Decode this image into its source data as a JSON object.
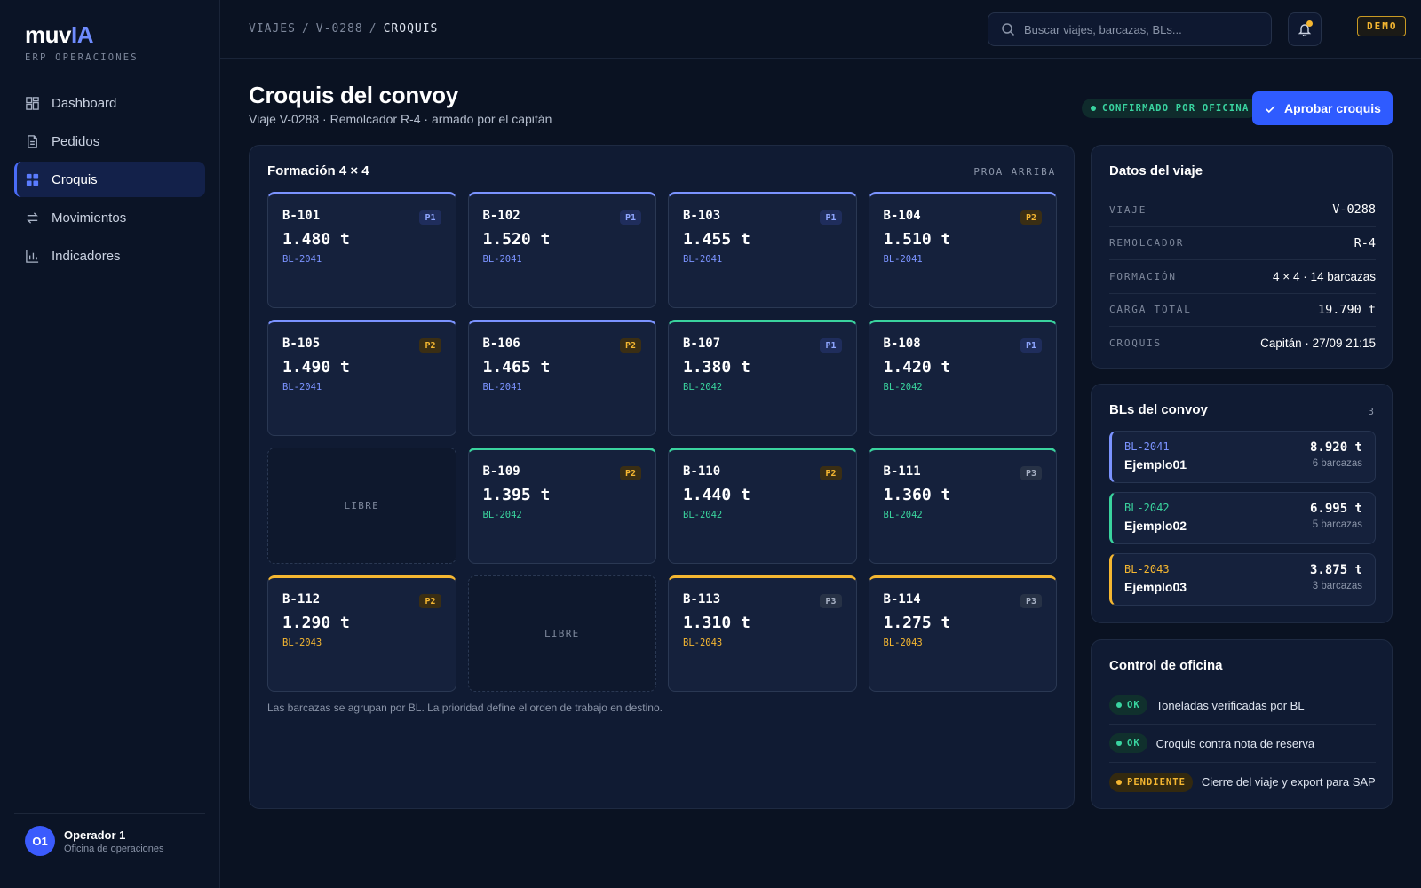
{
  "brand": {
    "name_a": "muv",
    "name_b": "IA",
    "subtitle": "ERP OPERACIONES"
  },
  "sidebar": {
    "items": [
      {
        "label": "Dashboard",
        "icon": "dashboard-icon"
      },
      {
        "label": "Pedidos",
        "icon": "document-icon"
      },
      {
        "label": "Croquis",
        "icon": "grid-icon",
        "active": true
      },
      {
        "label": "Movimientos",
        "icon": "swap-arrows-icon"
      },
      {
        "label": "Indicadores",
        "icon": "bar-chart-icon"
      }
    ]
  },
  "user": {
    "initials": "O1",
    "name": "Operador 1",
    "role": "Oficina de operaciones"
  },
  "breadcrumb": {
    "a": "VIAJES",
    "b": "V-0288",
    "c": "CROQUIS",
    "sep": "/"
  },
  "search": {
    "placeholder": "Buscar viajes, barcazas, BLs..."
  },
  "badge_demo": "DEMO",
  "header": {
    "title": "Croquis del convoy",
    "subtitle": "Viaje V-0288 · Remolcador R-4 · armado por el capitán",
    "status": "CONFIRMADO POR OFICINA",
    "approve_label": "Aprobar croquis"
  },
  "formation": {
    "title": "Formación 4 × 4",
    "orientation": "PROA ARRIBA",
    "empty_label": "LIBRE",
    "footnote": "Las barcazas se agrupan por BL. La prioridad define el orden de trabajo en destino.",
    "slots": [
      {
        "id": "B-101",
        "ton": "1.480 t",
        "bl": "BL-2041",
        "prio": "P1"
      },
      {
        "id": "B-102",
        "ton": "1.520 t",
        "bl": "BL-2041",
        "prio": "P1"
      },
      {
        "id": "B-103",
        "ton": "1.455 t",
        "bl": "BL-2041",
        "prio": "P1"
      },
      {
        "id": "B-104",
        "ton": "1.510 t",
        "bl": "BL-2041",
        "prio": "P2"
      },
      {
        "id": "B-105",
        "ton": "1.490 t",
        "bl": "BL-2041",
        "prio": "P2"
      },
      {
        "id": "B-106",
        "ton": "1.465 t",
        "bl": "BL-2041",
        "prio": "P2"
      },
      {
        "id": "B-107",
        "ton": "1.380 t",
        "bl": "BL-2042",
        "prio": "P1"
      },
      {
        "id": "B-108",
        "ton": "1.420 t",
        "bl": "BL-2042",
        "prio": "P1"
      },
      null,
      {
        "id": "B-109",
        "ton": "1.395 t",
        "bl": "BL-2042",
        "prio": "P2"
      },
      {
        "id": "B-110",
        "ton": "1.440 t",
        "bl": "BL-2042",
        "prio": "P2"
      },
      {
        "id": "B-111",
        "ton": "1.360 t",
        "bl": "BL-2042",
        "prio": "P3"
      },
      {
        "id": "B-112",
        "ton": "1.290 t",
        "bl": "BL-2043",
        "prio": "P2"
      },
      null,
      {
        "id": "B-113",
        "ton": "1.310 t",
        "bl": "BL-2043",
        "prio": "P3"
      },
      {
        "id": "B-114",
        "ton": "1.275 t",
        "bl": "BL-2043",
        "prio": "P3"
      }
    ]
  },
  "trip": {
    "title": "Datos del viaje",
    "rows": [
      {
        "label": "VIAJE",
        "value": "V-0288",
        "mono": true
      },
      {
        "label": "REMOLCADOR",
        "value": "R-4",
        "mono": true
      },
      {
        "label": "FORMACIÓN",
        "value": "4 × 4 · 14 barcazas",
        "mono": false
      },
      {
        "label": "CARGA TOTAL",
        "value": "19.790 t",
        "mono": true
      },
      {
        "label": "CROQUIS",
        "value": "Capitán · 27/09 21:15",
        "mono": false
      }
    ]
  },
  "bls": {
    "title": "BLs del convoy",
    "count": "3",
    "items": [
      {
        "code": "BL-2041",
        "name": "Ejemplo01",
        "ton": "8.920 t",
        "barges": "6 barcazas"
      },
      {
        "code": "BL-2042",
        "name": "Ejemplo02",
        "ton": "6.995 t",
        "barges": "5 barcazas"
      },
      {
        "code": "BL-2043",
        "name": "Ejemplo03",
        "ton": "3.875 t",
        "barges": "3 barcazas"
      }
    ]
  },
  "control": {
    "title": "Control de oficina",
    "items": [
      {
        "status": "OK",
        "text": "Toneladas verificadas por BL"
      },
      {
        "status": "OK",
        "text": "Croquis contra nota de reserva"
      },
      {
        "status": "PENDIENTE",
        "text": "Cierre del viaje y export para SAP"
      }
    ]
  },
  "colors": {
    "accent": "#2f5bff",
    "bl": {
      "BL-2041": "#7b93ff",
      "BL-2042": "#3ad39e",
      "BL-2043": "#f5b731"
    },
    "prio": {
      "P1": {
        "bg": "#1f2d5c",
        "fg": "#8fa6ff"
      },
      "P2": {
        "bg": "#3a2e14",
        "fg": "#f5b731"
      },
      "P3": {
        "bg": "#273246",
        "fg": "#a9b3c6"
      }
    },
    "ok": "#39d4a0",
    "pending": "#f5b731"
  }
}
